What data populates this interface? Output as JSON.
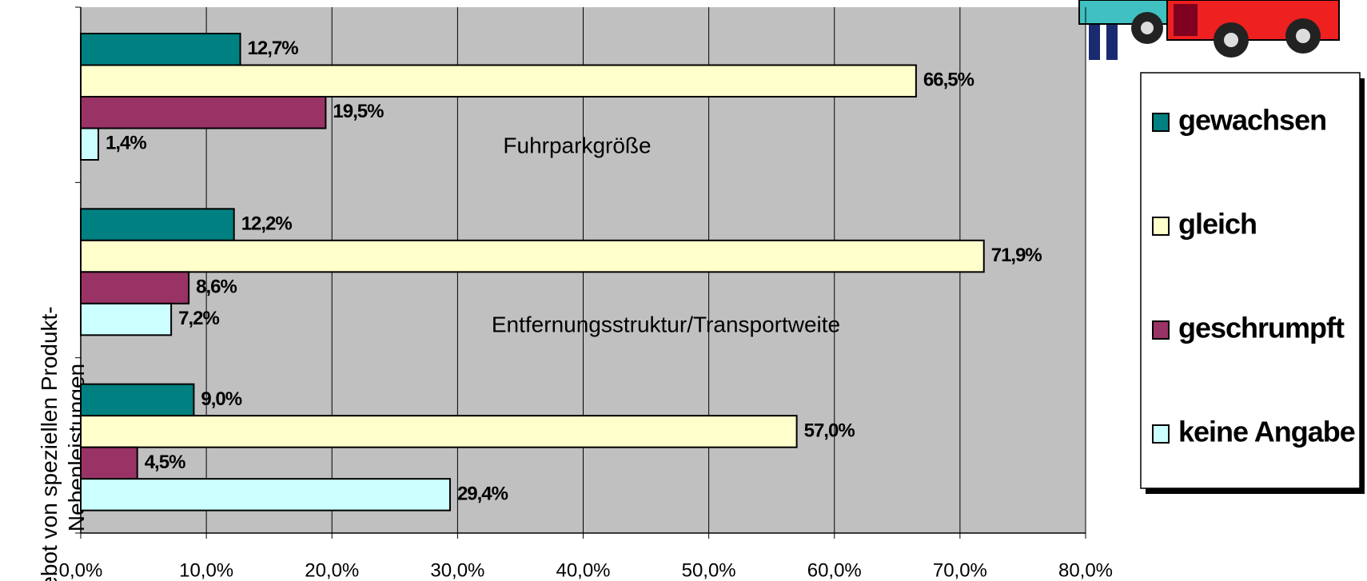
{
  "chart_data": {
    "type": "hbar",
    "categories": [
      "Fuhrparkgröße",
      "Entfernungsstruktur/Transportweite",
      "ebot von speziellen Produkt-\nNebenleistungen"
    ],
    "series": [
      {
        "name": "gewachsen",
        "color": "#008080",
        "values": [
          12.7,
          12.2,
          9.0
        ],
        "value_labels": [
          "12,7%",
          "12,2%",
          "9,0%"
        ]
      },
      {
        "name": "gleich",
        "color": "#ffffcc",
        "values": [
          66.5,
          71.9,
          57.0
        ],
        "value_labels": [
          "66,5%",
          "71,9%",
          "57,0%"
        ]
      },
      {
        "name": "geschrumpft",
        "color": "#993366",
        "values": [
          19.5,
          8.6,
          4.5
        ],
        "value_labels": [
          "19,5%",
          "8,6%",
          "4,5%"
        ]
      },
      {
        "name": "keine Angabe",
        "color": "#ccffff",
        "values": [
          1.4,
          7.2,
          29.4
        ],
        "value_labels": [
          "1,4%",
          "7,2%",
          "29,4%"
        ]
      }
    ],
    "xlim": [
      0,
      80
    ],
    "xticks": [
      {
        "value": 0,
        "label": "0,0%"
      },
      {
        "value": 10,
        "label": "10,0%"
      },
      {
        "value": 20,
        "label": "20,0%"
      },
      {
        "value": 30,
        "label": "30,0%"
      },
      {
        "value": 40,
        "label": "40,0%"
      },
      {
        "value": 50,
        "label": "50,0%"
      },
      {
        "value": 60,
        "label": "60,0%"
      },
      {
        "value": 70,
        "label": "70,0%"
      },
      {
        "value": 80,
        "label": "80,0%"
      }
    ],
    "grid": true,
    "legend": "right",
    "plot_background": "#c0c0c0"
  }
}
